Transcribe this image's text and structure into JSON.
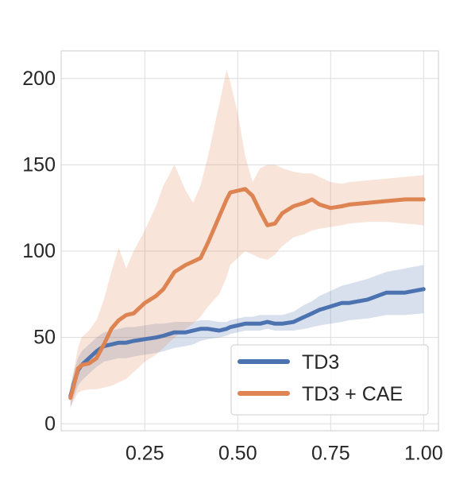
{
  "chart_data": {
    "type": "line",
    "title": "",
    "xlabel": "",
    "ylabel": "",
    "xlim": [
      0.025,
      1.04
    ],
    "ylim": [
      -4,
      216
    ],
    "grid": true,
    "legend_position": "lower-right",
    "x_ticks": [
      0.25,
      0.5,
      0.75,
      1.0
    ],
    "x_tick_labels": [
      "0.25",
      "0.50",
      "0.75",
      "1.00"
    ],
    "y_ticks": [
      0,
      50,
      100,
      150,
      200
    ],
    "y_tick_labels": [
      "0",
      "50",
      "100",
      "150",
      "200"
    ],
    "x": [
      0.05,
      0.06,
      0.07,
      0.08,
      0.1,
      0.12,
      0.14,
      0.16,
      0.18,
      0.2,
      0.22,
      0.25,
      0.28,
      0.3,
      0.33,
      0.36,
      0.38,
      0.4,
      0.42,
      0.45,
      0.47,
      0.48,
      0.5,
      0.52,
      0.54,
      0.56,
      0.58,
      0.6,
      0.62,
      0.65,
      0.68,
      0.7,
      0.72,
      0.75,
      0.78,
      0.8,
      0.85,
      0.9,
      0.95,
      1.0
    ],
    "series": [
      {
        "name": "TD3",
        "color": "#4c72b0",
        "mean": [
          16,
          24,
          31,
          34,
          38,
          42,
          45,
          46,
          47,
          47,
          48,
          49,
          50,
          51,
          53,
          53,
          54,
          55,
          55,
          54,
          55,
          56,
          57,
          58,
          58,
          58,
          59,
          58,
          58,
          59,
          62,
          64,
          66,
          68,
          70,
          70,
          72,
          76,
          76,
          78
        ],
        "lower": [
          9,
          16,
          22,
          25,
          29,
          33,
          36,
          37,
          38,
          38,
          39,
          40,
          41,
          42,
          44,
          45,
          46,
          48,
          49,
          50,
          51,
          52,
          53,
          54,
          54,
          54,
          55,
          54,
          54,
          54,
          55,
          56,
          57,
          58,
          59,
          60,
          61,
          63,
          63,
          64
        ],
        "upper": [
          22,
          31,
          38,
          42,
          46,
          50,
          53,
          54,
          55,
          56,
          56,
          57,
          58,
          58,
          59,
          59,
          59,
          60,
          60,
          59,
          59,
          60,
          61,
          62,
          62,
          63,
          63,
          63,
          63,
          65,
          69,
          71,
          74,
          77,
          80,
          81,
          84,
          88,
          90,
          92
        ]
      },
      {
        "name": "TD3 + CAE",
        "color": "#dd8452",
        "mean": [
          15,
          23,
          32,
          34,
          35,
          38,
          46,
          55,
          60,
          63,
          64,
          70,
          74,
          78,
          88,
          92,
          94,
          96,
          105,
          120,
          130,
          134,
          135,
          136,
          132,
          123,
          115,
          116,
          122,
          126,
          128,
          130,
          127,
          125,
          126,
          127,
          128,
          129,
          130,
          130
        ],
        "lower": [
          10,
          14,
          18,
          19,
          20,
          20,
          21,
          22,
          24,
          26,
          30,
          36,
          40,
          44,
          50,
          55,
          58,
          62,
          68,
          75,
          85,
          92,
          96,
          100,
          98,
          96,
          95,
          98,
          103,
          108,
          110,
          112,
          113,
          114,
          115,
          116,
          117,
          117,
          116,
          115
        ],
        "upper": [
          20,
          32,
          44,
          50,
          54,
          60,
          72,
          88,
          102,
          90,
          100,
          112,
          126,
          138,
          150,
          135,
          128,
          138,
          155,
          185,
          205,
          198,
          180,
          155,
          140,
          148,
          150,
          150,
          148,
          146,
          145,
          145,
          143,
          140,
          139,
          140,
          141,
          142,
          143,
          144
        ]
      }
    ]
  }
}
